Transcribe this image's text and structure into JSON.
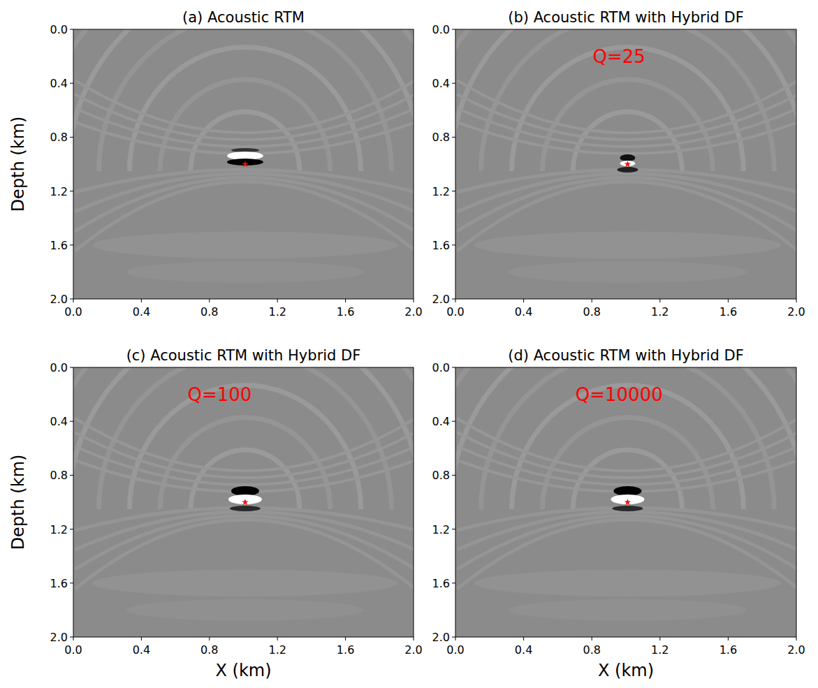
{
  "chart_data": [
    {
      "type": "image",
      "title": "(a) Acoustic RTM",
      "ylabel": "Depth (km)",
      "xlim": [
        0,
        2
      ],
      "ylim": [
        0,
        2
      ],
      "xticks": [
        {
          "value": 0,
          "label": "0.0"
        },
        {
          "value": 0.4,
          "label": "0.4"
        },
        {
          "value": 0.8,
          "label": "0.8"
        },
        {
          "value": 1.2,
          "label": "1.2"
        },
        {
          "value": 1.6,
          "label": "1.6"
        },
        {
          "value": 2,
          "label": "2.0"
        }
      ],
      "yticks": [
        {
          "value": 0,
          "label": "0.0"
        },
        {
          "value": 0.4,
          "label": "0.4"
        },
        {
          "value": 0.8,
          "label": "0.8"
        },
        {
          "value": 1.2,
          "label": "1.2"
        },
        {
          "value": 1.6,
          "label": "1.6"
        },
        {
          "value": 2,
          "label": "2.0"
        }
      ],
      "x": [
        1.01
      ],
      "values": [
        1.0
      ],
      "marker": "star",
      "color": "#ff0000"
    },
    {
      "type": "image",
      "title": "(b) Acoustic RTM with Hybrid DF",
      "xlim": [
        0,
        2
      ],
      "ylim": [
        0,
        2
      ],
      "xticks": [
        {
          "value": 0,
          "label": "0.0"
        },
        {
          "value": 0.4,
          "label": "0.4"
        },
        {
          "value": 0.8,
          "label": "0.8"
        },
        {
          "value": 1.2,
          "label": "1.2"
        },
        {
          "value": 1.6,
          "label": "1.6"
        },
        {
          "value": 2,
          "label": "2.0"
        }
      ],
      "yticks": [
        {
          "value": 0,
          "label": "0.0"
        },
        {
          "value": 0.4,
          "label": "0.4"
        },
        {
          "value": 0.8,
          "label": "0.8"
        },
        {
          "value": 1.2,
          "label": "1.2"
        },
        {
          "value": 1.6,
          "label": "1.6"
        },
        {
          "value": 2,
          "label": "2.0"
        }
      ],
      "x": [
        1.01
      ],
      "values": [
        1.0
      ],
      "marker": "star",
      "color": "#ff0000",
      "annotations": [
        {
          "text": "Q=25",
          "x": 0.96,
          "y": 0.25
        }
      ]
    },
    {
      "type": "image",
      "title": "(c) Acoustic RTM with Hybrid DF",
      "xlabel": "X (km)",
      "ylabel": "Depth (km)",
      "xlim": [
        0,
        2
      ],
      "ylim": [
        0,
        2
      ],
      "xticks": [
        {
          "value": 0,
          "label": "0.0"
        },
        {
          "value": 0.4,
          "label": "0.4"
        },
        {
          "value": 0.8,
          "label": "0.8"
        },
        {
          "value": 1.2,
          "label": "1.2"
        },
        {
          "value": 1.6,
          "label": "1.6"
        },
        {
          "value": 2,
          "label": "2.0"
        }
      ],
      "yticks": [
        {
          "value": 0,
          "label": "0.0"
        },
        {
          "value": 0.4,
          "label": "0.4"
        },
        {
          "value": 0.8,
          "label": "0.8"
        },
        {
          "value": 1.2,
          "label": "1.2"
        },
        {
          "value": 1.6,
          "label": "1.6"
        },
        {
          "value": 2,
          "label": "2.0"
        }
      ],
      "x": [
        1.01
      ],
      "values": [
        1.0
      ],
      "marker": "star",
      "color": "#ff0000",
      "annotations": [
        {
          "text": "Q=100",
          "x": 0.86,
          "y": 0.25
        }
      ]
    },
    {
      "type": "image",
      "title": "(d) Acoustic RTM with Hybrid DF",
      "xlabel": "X (km)",
      "xlim": [
        0,
        2
      ],
      "ylim": [
        0,
        2
      ],
      "xticks": [
        {
          "value": 0,
          "label": "0.0"
        },
        {
          "value": 0.4,
          "label": "0.4"
        },
        {
          "value": 0.8,
          "label": "0.8"
        },
        {
          "value": 1.2,
          "label": "1.2"
        },
        {
          "value": 1.6,
          "label": "1.6"
        },
        {
          "value": 2,
          "label": "2.0"
        }
      ],
      "yticks": [
        {
          "value": 0,
          "label": "0.0"
        },
        {
          "value": 0.4,
          "label": "0.4"
        },
        {
          "value": 0.8,
          "label": "0.8"
        },
        {
          "value": 1.2,
          "label": "1.2"
        },
        {
          "value": 1.6,
          "label": "1.6"
        },
        {
          "value": 2,
          "label": "2.0"
        }
      ],
      "x": [
        1.01
      ],
      "values": [
        1.0
      ],
      "marker": "star",
      "color": "#ff0000",
      "annotations": [
        {
          "text": "Q=10000",
          "x": 0.96,
          "y": 0.25
        }
      ]
    }
  ]
}
